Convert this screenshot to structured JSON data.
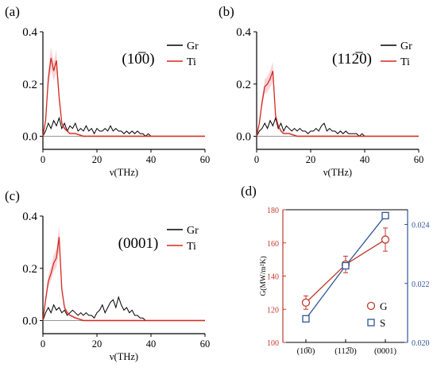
{
  "colors": {
    "gr": "#000000",
    "ti": "#d42a1f",
    "ti_band": "#f4b8c0",
    "g_series": "#c0392b",
    "s_series": "#2f5597",
    "axis": "#000000"
  },
  "chart_data": [
    {
      "panel": "(a)",
      "type": "line",
      "annotation": "(10̅0)",
      "xlabel": "ν(THz)",
      "ylabel": "",
      "xlim": [
        0,
        60
      ],
      "ylim": [
        -0.05,
        0.4
      ],
      "xticks": [
        0,
        20,
        40,
        60
      ],
      "yticks": [
        0.0,
        0.2,
        0.4
      ],
      "x_tick_labels": [
        "0",
        "20",
        "40",
        "60"
      ],
      "y_tick_labels": [
        "0.0",
        "0.2",
        "0.4"
      ],
      "legend_position": "top-right",
      "series": [
        {
          "name": "Gr",
          "x": [
            0,
            1,
            2,
            3,
            4,
            5,
            6,
            7,
            8,
            9,
            10,
            11,
            12,
            13,
            14,
            15,
            16,
            17,
            18,
            19,
            20,
            21,
            22,
            23,
            24,
            25,
            26,
            27,
            28,
            29,
            30,
            31,
            32,
            33,
            34,
            35,
            36,
            37,
            38,
            39,
            40,
            45,
            50,
            55,
            60
          ],
          "y": [
            0.0,
            0.02,
            0.05,
            0.03,
            0.06,
            0.04,
            0.07,
            0.03,
            0.05,
            0.02,
            0.04,
            0.03,
            0.05,
            0.02,
            0.03,
            0.02,
            0.04,
            0.02,
            0.03,
            0.01,
            0.03,
            0.02,
            0.02,
            0.03,
            0.02,
            0.04,
            0.02,
            0.03,
            0.02,
            0.02,
            0.01,
            0.02,
            0.01,
            0.02,
            0.01,
            0.02,
            0.01,
            0.01,
            0.0,
            0.01,
            0.0,
            0.0,
            0.0,
            0.0,
            0.0
          ]
        },
        {
          "name": "Ti",
          "x": [
            0,
            1,
            2,
            3,
            4,
            5,
            6,
            7,
            8,
            9,
            10,
            12,
            15,
            20,
            25,
            30,
            35,
            40,
            50,
            60
          ],
          "y": [
            0.0,
            0.06,
            0.22,
            0.3,
            0.25,
            0.29,
            0.15,
            0.05,
            0.03,
            0.02,
            0.01,
            0.01,
            0.0,
            0.0,
            0.0,
            0.0,
            0.0,
            0.0,
            0.0,
            0.0
          ]
        }
      ]
    },
    {
      "panel": "(b)",
      "type": "line",
      "annotation": "(112̅0)",
      "xlabel": "ν(THz)",
      "ylabel": "",
      "xlim": [
        0,
        60
      ],
      "ylim": [
        -0.05,
        0.4
      ],
      "xticks": [
        0,
        20,
        40,
        60
      ],
      "yticks": [
        0.0,
        0.2,
        0.4
      ],
      "x_tick_labels": [
        "0",
        "20",
        "40",
        "60"
      ],
      "y_tick_labels": [
        "0.0",
        "0.2",
        "0.4"
      ],
      "legend_position": "top-right",
      "series": [
        {
          "name": "Gr",
          "x": [
            0,
            1,
            2,
            3,
            4,
            5,
            6,
            7,
            8,
            9,
            10,
            11,
            12,
            13,
            14,
            15,
            16,
            17,
            18,
            19,
            20,
            21,
            22,
            23,
            24,
            25,
            26,
            27,
            28,
            29,
            30,
            31,
            32,
            33,
            34,
            35,
            36,
            37,
            38,
            39,
            40,
            45,
            50,
            55,
            60
          ],
          "y": [
            0.0,
            0.02,
            0.03,
            0.05,
            0.03,
            0.06,
            0.04,
            0.07,
            0.03,
            0.05,
            0.02,
            0.04,
            0.03,
            0.02,
            0.03,
            0.02,
            0.03,
            0.02,
            0.02,
            0.01,
            0.02,
            0.02,
            0.03,
            0.02,
            0.04,
            0.05,
            0.02,
            0.03,
            0.02,
            0.02,
            0.01,
            0.02,
            0.01,
            0.02,
            0.01,
            0.01,
            0.01,
            0.01,
            0.0,
            0.01,
            0.0,
            0.0,
            0.0,
            0.0,
            0.0
          ]
        },
        {
          "name": "Ti",
          "x": [
            0,
            1,
            2,
            3,
            4,
            5,
            6,
            7,
            8,
            9,
            10,
            12,
            15,
            20,
            25,
            30,
            35,
            40,
            50,
            60
          ],
          "y": [
            0.0,
            0.05,
            0.13,
            0.19,
            0.2,
            0.22,
            0.25,
            0.08,
            0.04,
            0.02,
            0.01,
            0.01,
            0.0,
            0.0,
            0.0,
            0.0,
            0.0,
            0.0,
            0.0,
            0.0
          ]
        }
      ]
    },
    {
      "panel": "(c)",
      "type": "line",
      "annotation": "(0001)",
      "xlabel": "ν(THz)",
      "ylabel": "",
      "xlim": [
        0,
        60
      ],
      "ylim": [
        -0.05,
        0.4
      ],
      "xticks": [
        0,
        20,
        40,
        60
      ],
      "yticks": [
        0.0,
        0.2,
        0.4
      ],
      "x_tick_labels": [
        "0",
        "20",
        "40",
        "60"
      ],
      "y_tick_labels": [
        "0.0",
        "0.2",
        "0.4"
      ],
      "legend_position": "top-right",
      "series": [
        {
          "name": "Gr",
          "x": [
            0,
            1,
            2,
            3,
            4,
            5,
            6,
            7,
            8,
            9,
            10,
            11,
            12,
            13,
            14,
            15,
            16,
            17,
            18,
            19,
            20,
            21,
            22,
            23,
            24,
            25,
            26,
            27,
            28,
            29,
            30,
            31,
            32,
            33,
            34,
            35,
            36,
            37,
            38,
            39,
            40,
            45,
            50,
            55,
            60
          ],
          "y": [
            0.0,
            0.03,
            0.05,
            0.03,
            0.06,
            0.04,
            0.05,
            0.03,
            0.04,
            0.02,
            0.03,
            0.04,
            0.03,
            0.02,
            0.03,
            0.02,
            0.03,
            0.02,
            0.02,
            0.01,
            0.03,
            0.04,
            0.06,
            0.03,
            0.05,
            0.07,
            0.08,
            0.05,
            0.09,
            0.06,
            0.04,
            0.05,
            0.03,
            0.04,
            0.02,
            0.02,
            0.01,
            0.01,
            0.0,
            0.0,
            0.0,
            0.0,
            0.0,
            0.0,
            0.0
          ]
        },
        {
          "name": "Ti",
          "x": [
            0,
            1,
            2,
            3,
            4,
            5,
            6,
            7,
            8,
            9,
            10,
            12,
            15,
            20,
            25,
            30,
            35,
            40,
            50,
            60
          ],
          "y": [
            0.0,
            0.08,
            0.15,
            0.18,
            0.22,
            0.24,
            0.32,
            0.12,
            0.05,
            0.03,
            0.02,
            0.01,
            0.0,
            0.0,
            0.0,
            0.0,
            0.0,
            0.0,
            0.0,
            0.0
          ]
        }
      ]
    },
    {
      "panel": "(d)",
      "type": "line",
      "categories": [
        "(10̅0)",
        "(112̅0)",
        "(0001)"
      ],
      "ylabel": "G(MW/m²K)",
      "ylim": [
        100,
        180
      ],
      "yticks": [
        100,
        120,
        140,
        160,
        180
      ],
      "y_tick_labels": [
        "100",
        "120",
        "140",
        "160",
        "180"
      ],
      "y2label": "",
      "y2lim": [
        0.02,
        0.0245
      ],
      "y2ticks": [
        0.02,
        0.022,
        0.024
      ],
      "y2_tick_labels": [
        "0.020",
        "0.022",
        "0.024"
      ],
      "legend_position": "bottom-right",
      "series": [
        {
          "name": "G",
          "axis": "left",
          "marker": "circle",
          "values": [
            124,
            147,
            162
          ],
          "errors": [
            4,
            5,
            7
          ]
        },
        {
          "name": "S",
          "axis": "right",
          "marker": "square",
          "values": [
            0.0208,
            0.0226,
            0.0243
          ]
        }
      ]
    }
  ]
}
